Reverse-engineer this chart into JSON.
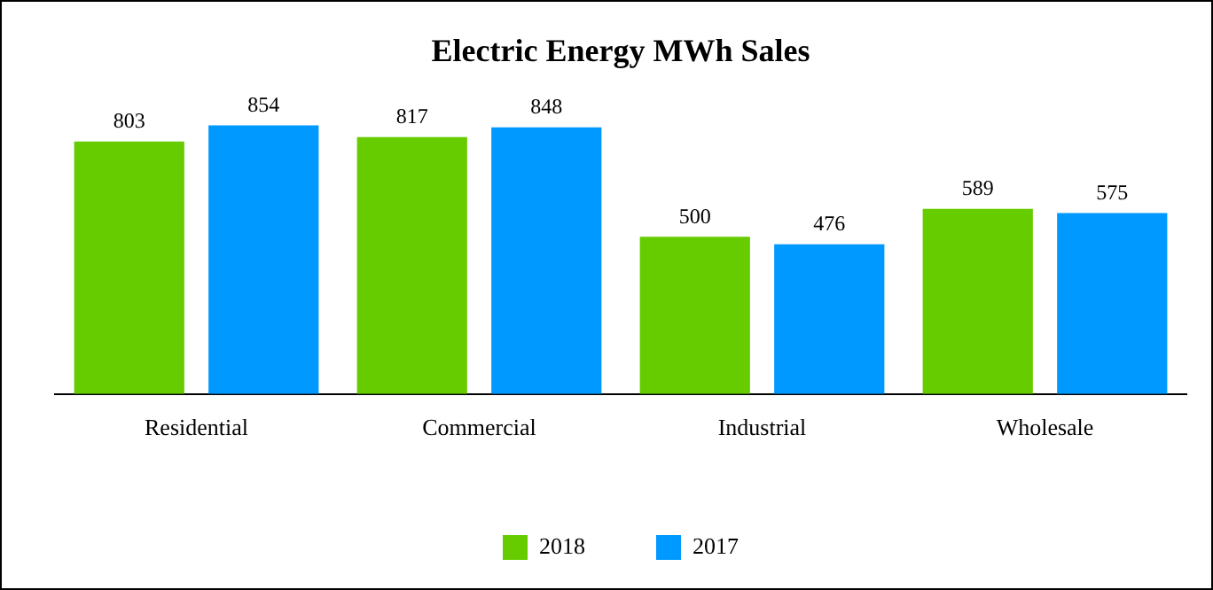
{
  "chart_data": {
    "type": "bar",
    "title": "Electric Energy MWh Sales",
    "categories": [
      "Residential",
      "Commercial",
      "Industrial",
      "Wholesale"
    ],
    "series": [
      {
        "name": "2018",
        "color": "#66cc00",
        "values": [
          803,
          817,
          500,
          589
        ]
      },
      {
        "name": "2017",
        "color": "#0099ff",
        "values": [
          854,
          848,
          476,
          575
        ]
      }
    ],
    "data_labels": true,
    "legend": "bottom"
  }
}
